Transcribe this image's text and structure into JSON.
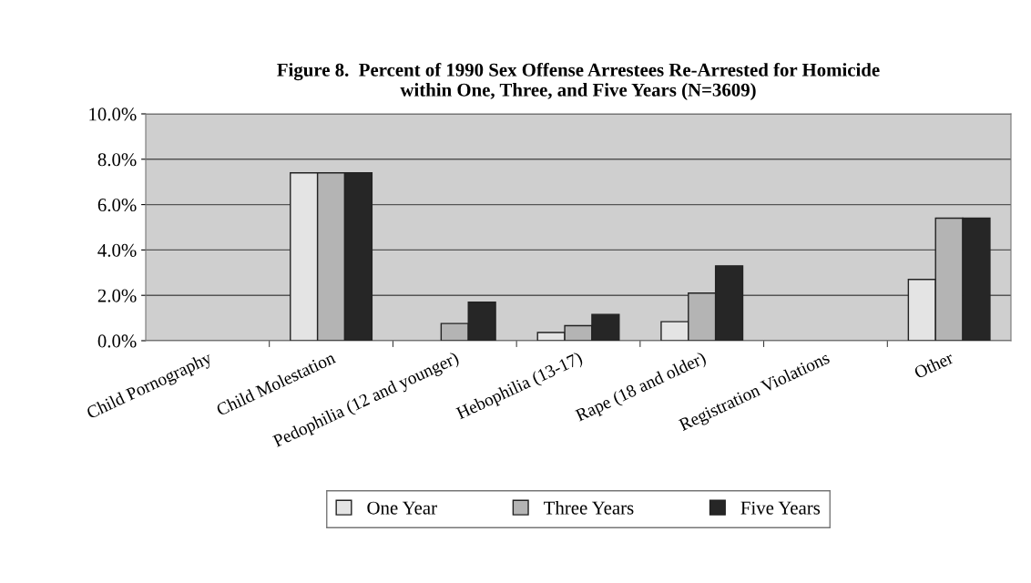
{
  "chart_data": {
    "type": "bar",
    "title": "Figure 8.  Percent of 1990 Sex Offense Arrestees Re-Arrested for Homicide\nwithin One, Three, and Five Years (N=3609)",
    "categories": [
      "Child Pornography",
      "Child Molestation",
      "Pedophilia (12 and younger)",
      "Hebophilia (13-17)",
      "Rape (18 and older)",
      "Registration Violations",
      "Other"
    ],
    "series": [
      {
        "name": "One Year",
        "color": "#e4e4e4",
        "values": [
          0,
          7.4,
          0,
          0.36,
          0.84,
          0,
          2.7
        ]
      },
      {
        "name": "Three Years",
        "color": "#b4b4b4",
        "values": [
          0,
          7.4,
          0.76,
          0.66,
          2.1,
          0,
          5.4
        ]
      },
      {
        "name": "Five Years",
        "color": "#262626",
        "values": [
          0,
          7.4,
          1.7,
          1.16,
          3.3,
          0,
          5.4
        ]
      }
    ],
    "ylim": [
      0,
      10
    ],
    "yticks": [
      {
        "value": 0,
        "label": "0.0%"
      },
      {
        "value": 2,
        "label": "2.0%"
      },
      {
        "value": 4,
        "label": "4.0%"
      },
      {
        "value": 6,
        "label": "6.0%"
      },
      {
        "value": 8,
        "label": "8.0%"
      },
      {
        "value": 10,
        "label": "10.0%"
      }
    ],
    "grid": "y",
    "legend": "bottom"
  }
}
